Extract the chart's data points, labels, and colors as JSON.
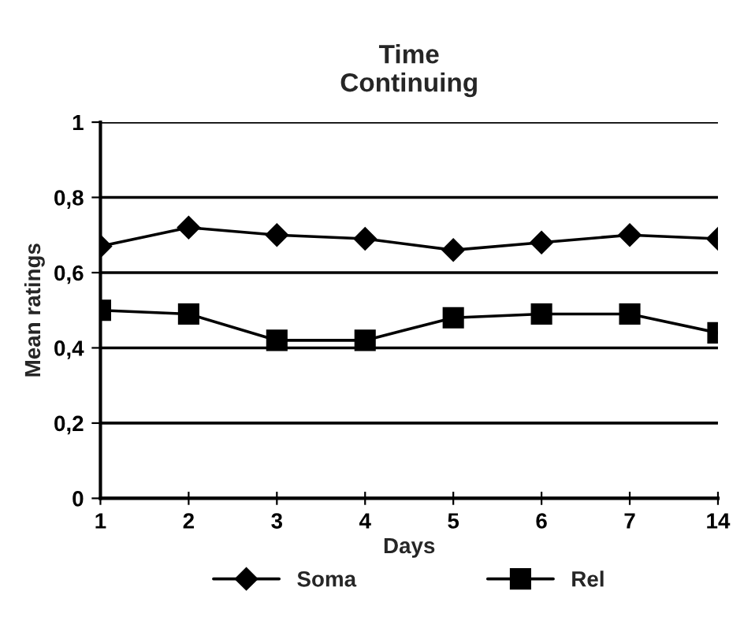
{
  "chart_data": {
    "type": "line",
    "title": "Time\nContinuing",
    "xlabel": "Days",
    "ylabel": "Mean ratings",
    "categories": [
      "1",
      "2",
      "3",
      "4",
      "5",
      "6",
      "7",
      "14"
    ],
    "series": [
      {
        "name": "Soma",
        "color": "#000000",
        "marker": "diamond",
        "values": [
          0.67,
          0.72,
          0.7,
          0.69,
          0.66,
          0.68,
          0.7,
          0.69
        ]
      },
      {
        "name": "Rel",
        "color": "#000000",
        "marker": "square",
        "values": [
          0.5,
          0.49,
          0.42,
          0.42,
          0.48,
          0.49,
          0.49,
          0.44
        ]
      }
    ],
    "ylim": [
      0,
      1
    ],
    "yticks": [
      {
        "value": 0,
        "label": "0"
      },
      {
        "value": 0.2,
        "label": "0,2"
      },
      {
        "value": 0.4,
        "label": "0,4"
      },
      {
        "value": 0.6,
        "label": "0,6"
      },
      {
        "value": 0.8,
        "label": "0,8"
      },
      {
        "value": 1,
        "label": "1"
      }
    ],
    "grid": "y",
    "legend": "bottom",
    "line_style": "solid"
  }
}
